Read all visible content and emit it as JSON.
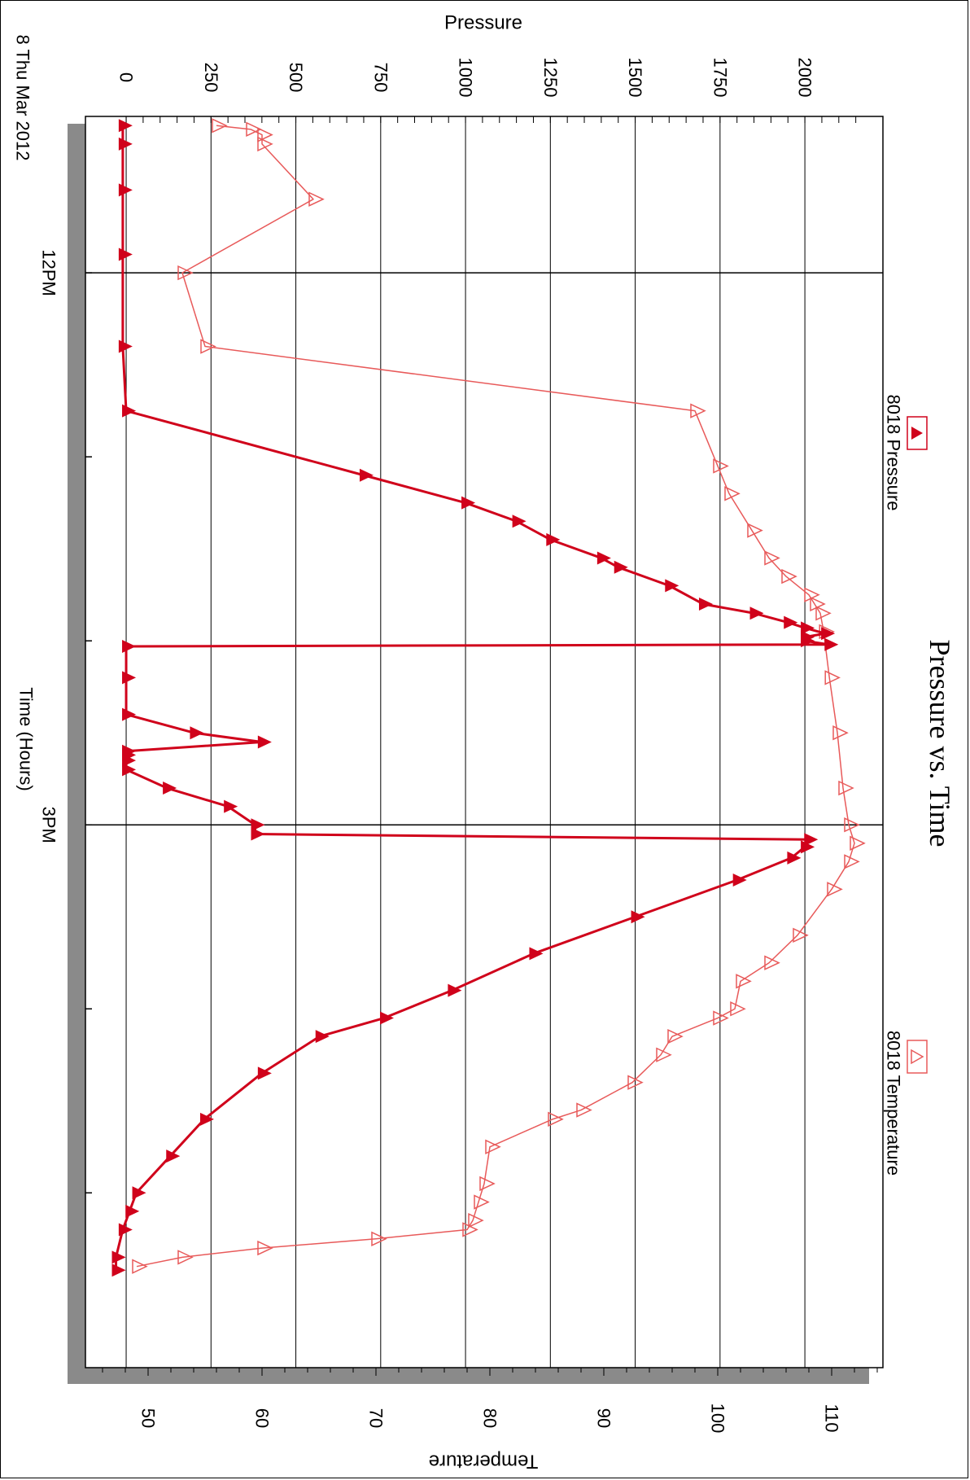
{
  "chart_data": {
    "type": "line",
    "title": "Pressure vs. Time",
    "date_label": "8 Thu Mar 2012",
    "xlabel": "Time (Hours)",
    "ylabel_left": "Pressure",
    "ylabel_right": "Temperature",
    "x_unit": "hours",
    "x_ticks": [
      {
        "value": 12.0,
        "label": "12PM"
      },
      {
        "value": 13.0,
        "label": ""
      },
      {
        "value": 14.0,
        "label": ""
      },
      {
        "value": 15.0,
        "label": "3PM"
      },
      {
        "value": 16.0,
        "label": ""
      },
      {
        "value": 17.0,
        "label": ""
      }
    ],
    "x_range": [
      11.15,
      17.95
    ],
    "pressure_ticks": [
      0,
      250,
      500,
      750,
      1000,
      1250,
      1500,
      1750,
      2000
    ],
    "pressure_range": [
      -120,
      2230
    ],
    "temperature_ticks": [
      50,
      60,
      70,
      80,
      90,
      100,
      110
    ],
    "temperature_range": [
      44.5,
      114.5
    ],
    "grid": true,
    "legend_placement": "top",
    "series": [
      {
        "name": "8018 Pressure",
        "axis": "pressure",
        "marker": "filled-triangle",
        "color": "#d0021b",
        "x": [
          11.2,
          11.3,
          11.55,
          11.9,
          12.4,
          12.75,
          13.1,
          13.25,
          13.35,
          13.45,
          13.55,
          13.6,
          13.7,
          13.8,
          13.85,
          13.9,
          13.93,
          13.96,
          13.98,
          14.0,
          14.02,
          14.03,
          14.2,
          14.4,
          14.5,
          14.55,
          14.6,
          14.62,
          14.65,
          14.7,
          14.8,
          14.9,
          15.0,
          15.05,
          15.08,
          15.12,
          15.18,
          15.3,
          15.5,
          15.7,
          15.9,
          16.05,
          16.15,
          16.35,
          16.6,
          16.8,
          17.0,
          17.1,
          17.2,
          17.35,
          17.42
        ],
        "y": [
          -10,
          -10,
          -10,
          -10,
          -10,
          0,
          700,
          1000,
          1150,
          1250,
          1400,
          1450,
          1600,
          1700,
          1850,
          1950,
          2000,
          2060,
          2000,
          2000,
          2070,
          0,
          0,
          0,
          200,
          400,
          0,
          0,
          0,
          0,
          120,
          300,
          380,
          380,
          2010,
          2000,
          1960,
          1800,
          1500,
          1200,
          960,
          760,
          570,
          400,
          230,
          130,
          30,
          10,
          -10,
          -30,
          -30
        ]
      },
      {
        "name": "8018 Temperature",
        "axis": "temperature",
        "marker": "open-triangle",
        "color": "#e85a5a",
        "x": [
          11.2,
          11.22,
          11.25,
          11.3,
          11.6,
          12.0,
          12.4,
          12.75,
          13.05,
          13.2,
          13.4,
          13.55,
          13.65,
          13.75,
          13.8,
          13.85,
          13.95,
          14.2,
          14.5,
          14.8,
          15.0,
          15.1,
          15.2,
          15.35,
          15.6,
          15.75,
          15.85,
          16.0,
          16.05,
          16.15,
          16.25,
          16.4,
          16.55,
          16.6,
          16.75,
          16.95,
          17.05,
          17.15,
          17.2,
          17.25,
          17.3,
          17.35,
          17.4
        ],
        "y": [
          56,
          59,
          60,
          60,
          64.5,
          53,
          55,
          98,
          100,
          101,
          103,
          104.5,
          106,
          108,
          108.5,
          109,
          109.3,
          109.8,
          110.5,
          111,
          111.5,
          112,
          111.5,
          110,
          107,
          104.5,
          102,
          101.5,
          100,
          96,
          95,
          92.5,
          88,
          85.5,
          80,
          79.5,
          79,
          78.5,
          78,
          70,
          60,
          53,
          49
        ]
      }
    ]
  }
}
